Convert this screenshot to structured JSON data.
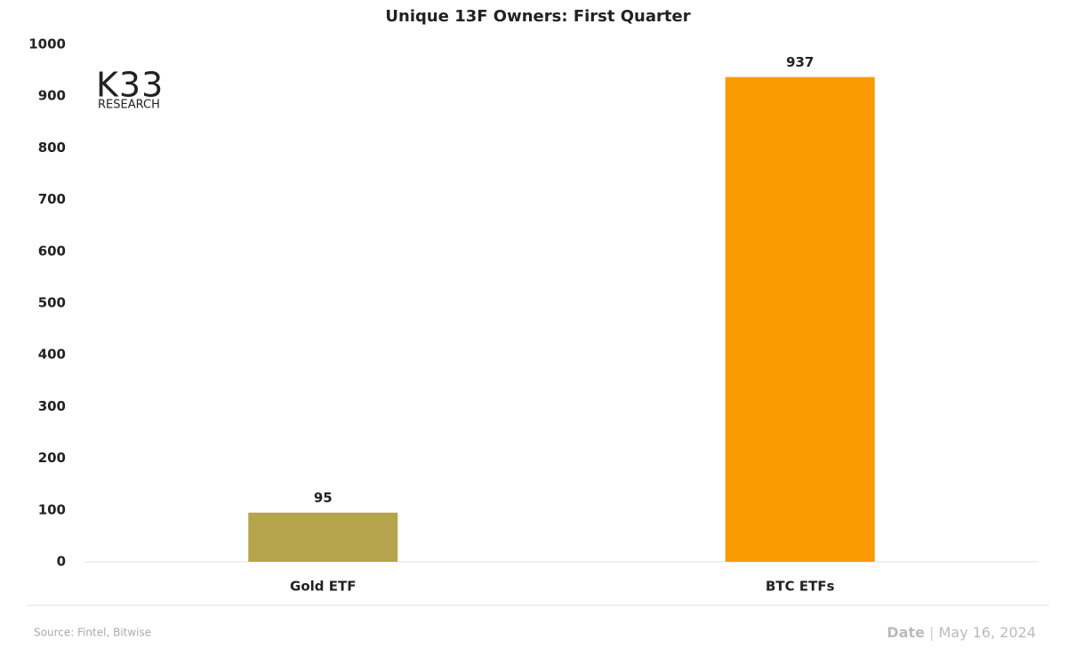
{
  "chart_data": {
    "type": "bar",
    "title": "Unique 13F Owners: First Quarter",
    "categories": [
      "Gold ETF",
      "BTC ETFs"
    ],
    "values": [
      95,
      937
    ],
    "colors": [
      "#b5a44c",
      "#f99b00"
    ],
    "ylim": [
      0,
      1000
    ],
    "yticks": [
      0,
      100,
      200,
      300,
      400,
      500,
      600,
      700,
      800,
      900,
      1000
    ],
    "grid": false,
    "logo": "K33",
    "logo_subtitle": "RESEARCH",
    "source": "Source:  Fintel, Bitwise",
    "date_label": "Date",
    "date_separator": "|",
    "date": "May 16, 2024"
  }
}
